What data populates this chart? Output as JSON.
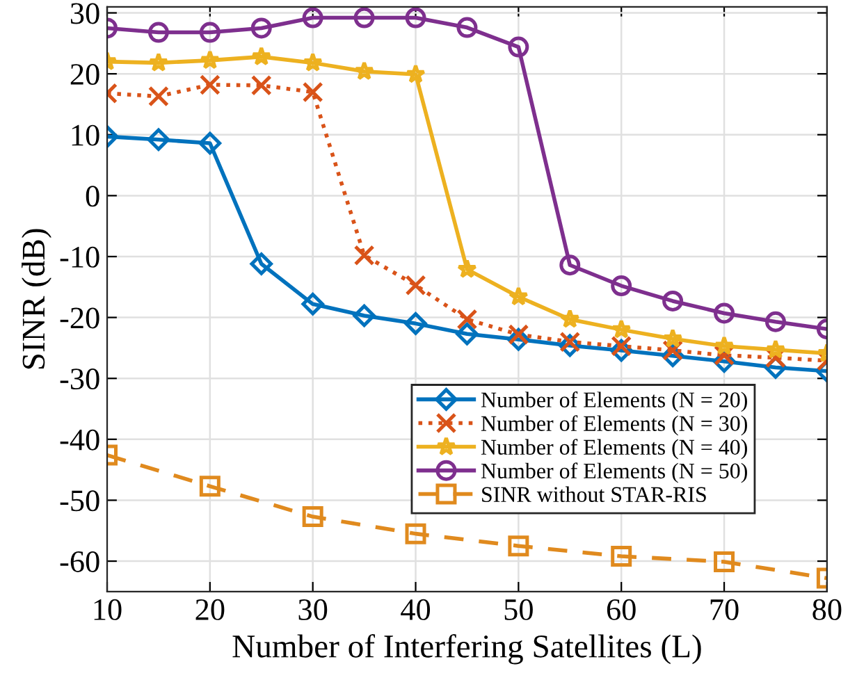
{
  "chart_data": {
    "type": "line",
    "xlabel": "Number of Interfering Satellites (L)",
    "ylabel": "SINR (dB)",
    "x": [
      10,
      15,
      20,
      25,
      30,
      35,
      40,
      45,
      50,
      55,
      60,
      65,
      70,
      75,
      80
    ],
    "series": [
      {
        "name": "Number of Elements (N = 20)",
        "color": "#0072bd",
        "marker": "diamond",
        "line_style": "solid",
        "values": [
          9.7,
          9.2,
          8.6,
          -11.2,
          -17.8,
          -19.7,
          -21,
          -22.7,
          -23.6,
          -24.6,
          -25.4,
          -26.3,
          -27.2,
          -28.2,
          -28.8
        ]
      },
      {
        "name": "Number of Elements (N = 30)",
        "color": "#d95319",
        "marker": "cross",
        "line_style": "dotted",
        "values": [
          16.8,
          16.3,
          18.2,
          18.1,
          17.0,
          -9.8,
          -14.7,
          -20.3,
          -22.8,
          -24.0,
          -24.7,
          -25.4,
          -26.2,
          -26.6,
          -27.1
        ]
      },
      {
        "name": "Number of Elements (N = 40)",
        "color": "#edb120",
        "marker": "star",
        "line_style": "solid",
        "values": [
          22,
          21.8,
          22.2,
          22.8,
          21.8,
          20.4,
          19.9,
          -12.1,
          -16.6,
          -20.3,
          -22,
          -23.5,
          -24.7,
          -25.3,
          -25.9
        ]
      },
      {
        "name": "Number of Elements (N = 50)",
        "color": "#7e2f8e",
        "marker": "circle",
        "line_style": "solid",
        "values": [
          27.5,
          26.8,
          26.8,
          27.5,
          29.2,
          29.2,
          29.2,
          27.6,
          24.4,
          -11.4,
          -14.8,
          -17.3,
          -19.3,
          -20.7,
          -21.9
        ]
      },
      {
        "name": "SINR without STAR-RIS",
        "color": "#e08a1e",
        "marker": "square",
        "line_style": "dashed",
        "x": [
          10,
          20,
          30,
          40,
          50,
          60,
          70,
          80
        ],
        "values": [
          -42.6,
          -47.7,
          -52.7,
          -55.5,
          -57.5,
          -59.2,
          -60.1,
          -62.8
        ]
      }
    ],
    "xlim": [
      10,
      80
    ],
    "xticks": [
      10,
      20,
      30,
      40,
      50,
      60,
      70,
      80
    ],
    "ylim": [
      -65,
      31
    ],
    "yticks": [
      -60,
      -50,
      -40,
      -30,
      -20,
      -10,
      0,
      10,
      20,
      30
    ],
    "grid": true,
    "legend": "bottom right"
  }
}
